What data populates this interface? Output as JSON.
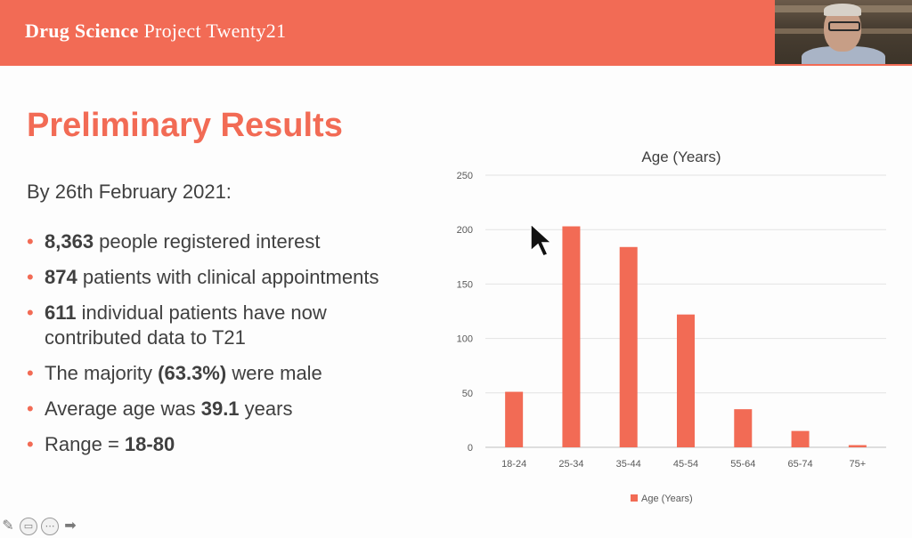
{
  "header": {
    "title_bold": "Drug Science",
    "title_rest": "Project Twenty21",
    "color": "#f26b55"
  },
  "slide": {
    "title": "Preliminary Results",
    "subtitle": "By 26th February 2021:",
    "bullets": [
      {
        "bold": "8,363",
        "rest": " people registered interest"
      },
      {
        "bold": "874",
        "rest": " patients with clinical appointments"
      },
      {
        "bold": "611",
        "rest": " individual patients have now contributed data to T21"
      },
      {
        "pre": "The majority ",
        "bold": "(63.3%)",
        "rest": " were male"
      },
      {
        "pre": "Average age was ",
        "bold": "39.1",
        "rest": " years"
      },
      {
        "pre": "Range = ",
        "bold": "18-80",
        "rest": ""
      }
    ]
  },
  "chart_data": {
    "type": "bar",
    "title": "Age (Years)",
    "categories": [
      "18-24",
      "25-34",
      "35-44",
      "45-54",
      "55-64",
      "65-74",
      "75+"
    ],
    "series": [
      {
        "name": "Age (Years)",
        "values": [
          51,
          203,
          184,
          122,
          35,
          15,
          2
        ]
      }
    ],
    "ylim": [
      0,
      250
    ],
    "yticks": [
      0,
      50,
      100,
      150,
      200,
      250
    ],
    "grid": true,
    "legend": "bottom",
    "bar_color": "#f26b55"
  },
  "toolbar": {
    "icons": [
      "pen-icon",
      "slides-icon",
      "more-icon",
      "next-arrow-icon"
    ]
  }
}
